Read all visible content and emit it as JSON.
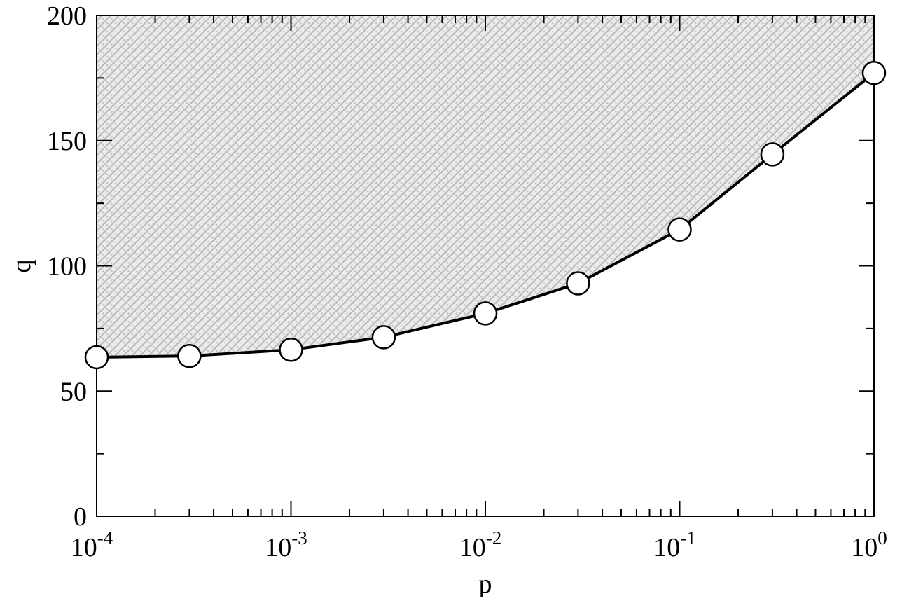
{
  "chart_data": {
    "type": "line",
    "title": "",
    "xlabel": "p",
    "ylabel": "q",
    "x_scale": "log",
    "xlim": [
      0.0001,
      1
    ],
    "ylim": [
      0,
      200
    ],
    "x_tick_labels": [
      {
        "value": 0.0001,
        "base": "10",
        "exp": "-4"
      },
      {
        "value": 0.001,
        "base": "10",
        "exp": "-3"
      },
      {
        "value": 0.01,
        "base": "10",
        "exp": "-2"
      },
      {
        "value": 0.1,
        "base": "10",
        "exp": "-1"
      },
      {
        "value": 1,
        "base": "10",
        "exp": "0"
      }
    ],
    "y_ticks": [
      0,
      50,
      100,
      150,
      200
    ],
    "y_tick_labels": [
      "0",
      "50",
      "100",
      "150",
      "200"
    ],
    "y_minor_step": 25,
    "grid": false,
    "legend": "none",
    "fill_above_curve": true,
    "colors": {
      "line": "#000000",
      "marker_fill": "#ffffff",
      "hatch_light": "#ececec",
      "hatch_dark": "#bdbdbd"
    },
    "series": [
      {
        "marker": "circle",
        "x": [
          0.0001,
          0.0003,
          0.001,
          0.003,
          0.01,
          0.03,
          0.1,
          0.3,
          1
        ],
        "y": [
          63.5,
          64,
          66.5,
          71.5,
          81,
          93,
          114.5,
          144.5,
          177
        ]
      }
    ]
  }
}
